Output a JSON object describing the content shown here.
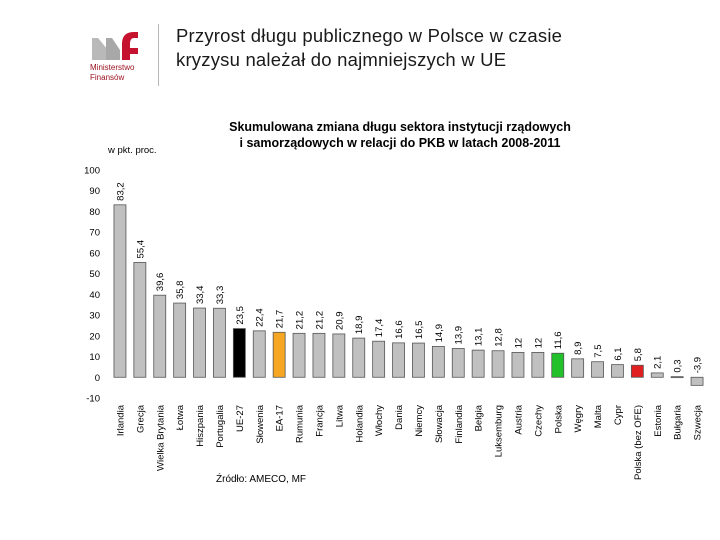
{
  "header": {
    "logo_line1": "Ministerstwo",
    "logo_line2": "Finansów",
    "slide_title_line1": "Przyrost długu publicznego w Polsce w czasie",
    "slide_title_line2": "kryzysu należał do najmniejszych w UE"
  },
  "colors": {
    "default_bar": "#c0c0c0",
    "eu27_bar": "#000000",
    "ea17_bar": "#f5a623",
    "poland_bar": "#22c02a",
    "poland_ofe_bar": "#e02020",
    "logo_red": "#c4122f"
  },
  "chart_data": {
    "type": "bar",
    "title_line1": "Skumulowana zmiana długu sektora instytucji rządowych",
    "title_line2": "i samorządowych w relacji do PKB w latach 2008-2011",
    "ylabel": "w pkt. proc.",
    "ylim": [
      -10,
      100
    ],
    "yticks": [
      "100",
      "90",
      "80",
      "70",
      "60",
      "50",
      "40",
      "30",
      "20",
      "10",
      "0",
      "-10"
    ],
    "grid": false,
    "source": "Źródło: AMECO, MF",
    "categories": [
      "Irlandia",
      "Grecja",
      "Wielka Brytania",
      "Łotwa",
      "Hiszpania",
      "Portugalia",
      "UE-27",
      "Słowenia",
      "EA-17",
      "Rumunia",
      "Francja",
      "Litwa",
      "Holandia",
      "Włochy",
      "Dania",
      "Niemcy",
      "Słowacja",
      "Finlandia",
      "Belgia",
      "Luksemburg",
      "Austria",
      "Czechy",
      "Polska",
      "Węgry",
      "Malta",
      "Cypr",
      "Polska (bez OFE)",
      "Estonia",
      "Bułgaria",
      "Szwecja"
    ],
    "values": [
      83.2,
      55.4,
      39.6,
      35.8,
      33.4,
      33.3,
      23.5,
      22.4,
      21.7,
      21.2,
      21.2,
      20.9,
      18.9,
      17.4,
      16.6,
      16.5,
      14.9,
      13.9,
      13.1,
      12.8,
      12,
      12,
      11.6,
      8.9,
      7.5,
      6.1,
      5.8,
      2.1,
      0.3,
      -3.9
    ],
    "labels": [
      "83,2",
      "55,4",
      "39,6",
      "35,8",
      "33,4",
      "33,3",
      "23,5",
      "22,4",
      "21,7",
      "21,2",
      "21,2",
      "20,9",
      "18,9",
      "17,4",
      "16,6",
      "16,5",
      "14,9",
      "13,9",
      "13,1",
      "12,8",
      "12",
      "12",
      "11,6",
      "8,9",
      "7,5",
      "6,1",
      "5,8",
      "2,1",
      "0,3",
      "-3,9"
    ],
    "highlight": {
      "UE-27": "eu27_bar",
      "EA-17": "ea17_bar",
      "Polska": "poland_bar",
      "Polska (bez OFE)": "poland_ofe_bar"
    }
  }
}
